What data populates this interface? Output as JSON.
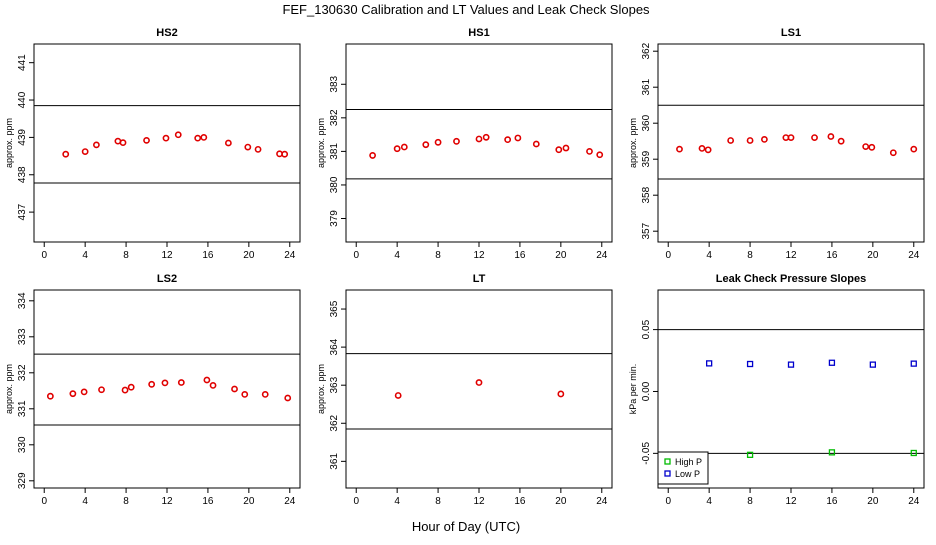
{
  "title": "FEF_130630  Calibration and LT Values and Leak Check Slopes",
  "xlabel": "Hour of Day (UTC)",
  "colors": {
    "red_points": "#e00000",
    "high_p": "#00bb00",
    "low_p": "#0000cc",
    "axis": "#000000"
  },
  "chart_data": [
    {
      "type": "scatter",
      "title": "HS2",
      "ylabel": "approx. ppm",
      "xlim": [
        -1,
        25
      ],
      "ylim": [
        436.2,
        441.5
      ],
      "xticks": [
        0,
        4,
        8,
        12,
        16,
        20,
        24
      ],
      "yticks": [
        437,
        438,
        439,
        440,
        441
      ],
      "hlines": [
        439.85,
        437.78
      ],
      "series": [
        {
          "color": "red",
          "x": [
            2.1,
            4.0,
            5.1,
            7.2,
            7.7,
            10.0,
            11.9,
            13.1,
            15.0,
            15.6,
            18.0,
            19.9,
            20.9,
            23.0,
            23.5
          ],
          "y": [
            438.55,
            438.62,
            438.8,
            438.9,
            438.86,
            438.92,
            438.98,
            439.07,
            438.98,
            439.0,
            438.85,
            438.74,
            438.68,
            438.56,
            438.55
          ]
        }
      ]
    },
    {
      "type": "scatter",
      "title": "HS1",
      "ylabel": "approx. ppm",
      "xlim": [
        -1,
        25
      ],
      "ylim": [
        378.3,
        384.2
      ],
      "xticks": [
        0,
        4,
        8,
        12,
        16,
        20,
        24
      ],
      "yticks": [
        379,
        380,
        381,
        382,
        383
      ],
      "hlines": [
        382.25,
        380.18
      ],
      "series": [
        {
          "color": "red",
          "x": [
            1.6,
            4.0,
            4.7,
            6.8,
            8.0,
            9.8,
            12.0,
            12.7,
            14.8,
            15.8,
            17.6,
            19.8,
            20.5,
            22.8,
            23.8
          ],
          "y": [
            380.88,
            381.08,
            381.13,
            381.2,
            381.27,
            381.3,
            381.37,
            381.42,
            381.35,
            381.4,
            381.22,
            381.05,
            381.1,
            381.0,
            380.9
          ]
        }
      ]
    },
    {
      "type": "scatter",
      "title": "LS1",
      "ylabel": "approx. ppm",
      "xlim": [
        -1,
        25
      ],
      "ylim": [
        356.7,
        362.2
      ],
      "xticks": [
        0,
        4,
        8,
        12,
        16,
        20,
        24
      ],
      "yticks": [
        357,
        358,
        359,
        360,
        361,
        362
      ],
      "hlines": [
        360.5,
        358.45
      ],
      "series": [
        {
          "color": "red",
          "x": [
            1.1,
            3.3,
            3.9,
            6.1,
            8.0,
            9.4,
            11.5,
            12.0,
            14.3,
            15.9,
            16.9,
            19.3,
            19.9,
            22.0,
            24.0
          ],
          "y": [
            359.28,
            359.3,
            359.26,
            359.52,
            359.52,
            359.55,
            359.6,
            359.6,
            359.6,
            359.63,
            359.5,
            359.35,
            359.33,
            359.18,
            359.28
          ]
        }
      ]
    },
    {
      "type": "scatter",
      "title": "LS2",
      "ylabel": "approx. ppm",
      "xlim": [
        -1,
        25
      ],
      "ylim": [
        328.8,
        334.3
      ],
      "xticks": [
        0,
        4,
        8,
        12,
        16,
        20,
        24
      ],
      "yticks": [
        329,
        330,
        331,
        332,
        333,
        334
      ],
      "hlines": [
        332.52,
        330.55
      ],
      "series": [
        {
          "color": "red",
          "x": [
            0.6,
            2.8,
            3.9,
            5.6,
            7.9,
            8.5,
            10.5,
            11.8,
            13.4,
            15.9,
            16.5,
            18.6,
            19.6,
            21.6,
            23.8
          ],
          "y": [
            331.35,
            331.42,
            331.47,
            331.53,
            331.52,
            331.6,
            331.68,
            331.72,
            331.73,
            331.8,
            331.65,
            331.55,
            331.4,
            331.4,
            331.3
          ]
        }
      ]
    },
    {
      "type": "scatter",
      "title": "LT",
      "ylabel": "approx. ppm",
      "xlim": [
        -1,
        25
      ],
      "ylim": [
        360.3,
        365.5
      ],
      "xticks": [
        0,
        4,
        8,
        12,
        16,
        20,
        24
      ],
      "yticks": [
        361,
        362,
        363,
        364,
        365
      ],
      "hlines": [
        363.83,
        361.85
      ],
      "series": [
        {
          "color": "red",
          "x": [
            4.1,
            12.0,
            20.0
          ],
          "y": [
            362.73,
            363.07,
            362.77
          ]
        }
      ]
    },
    {
      "type": "scatter",
      "title": "Leak Check Pressure Slopes",
      "ylabel": "kPa per min.",
      "xlim": [
        -1,
        25
      ],
      "ylim": [
        -0.078,
        0.082
      ],
      "xticks": [
        0,
        4,
        8,
        12,
        16,
        20,
        24
      ],
      "yticks": [
        -0.05,
        0.0,
        0.05
      ],
      "ytick_labels": [
        "-0.05",
        "0.00",
        "0.05"
      ],
      "hlines": [
        0.05,
        -0.05
      ],
      "legend": {
        "placement": "bottom-left",
        "entries": [
          "High P",
          "Low P"
        ]
      },
      "series": [
        {
          "name": "High P",
          "color": "green",
          "x": [
            8.0,
            16.0,
            24.0
          ],
          "y": [
            -0.0512,
            -0.0492,
            -0.0497
          ]
        },
        {
          "name": "Low P",
          "color": "blue",
          "x": [
            4.0,
            8.0,
            12.0,
            16.0,
            20.0,
            24.0
          ],
          "y": [
            0.0227,
            0.0222,
            0.0217,
            0.0232,
            0.0217,
            0.0225
          ]
        }
      ]
    }
  ]
}
